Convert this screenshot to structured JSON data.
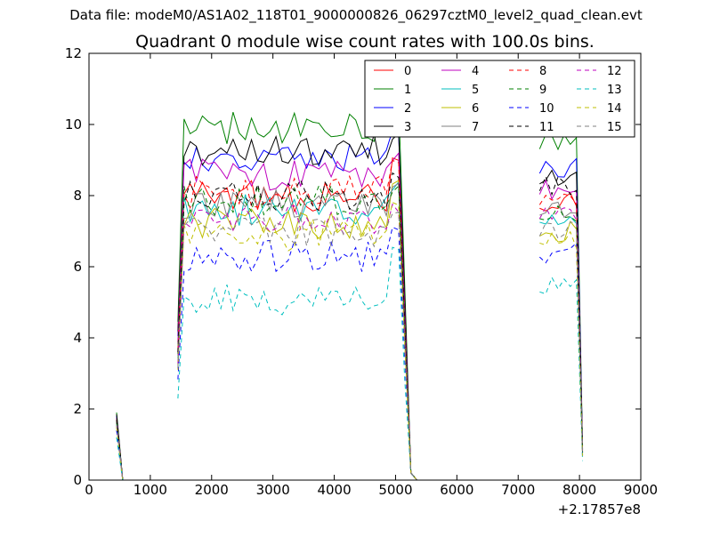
{
  "figure": {
    "suptitle": "Data file: modeM0/AS1A02_118T01_9000000826_06297cztM0_level2_quad_clean.evt"
  },
  "chart_data": {
    "type": "line",
    "title": "Quadrant 0 module wise count rates with 100.0s bins.",
    "xlabel": "",
    "ylabel": "",
    "x_offset_label": "+2.17857e8",
    "xlim": [
      0,
      9000
    ],
    "ylim": [
      0,
      12
    ],
    "xticks": [
      0,
      1000,
      2000,
      3000,
      4000,
      5000,
      6000,
      7000,
      8000,
      9000
    ],
    "yticks": [
      0,
      2,
      4,
      6,
      8,
      10,
      12
    ],
    "grid": false,
    "legend": {
      "placement": "top-right",
      "ncol": 4
    },
    "segments": [
      {
        "x": [
          450,
          550,
          650,
          750,
          850,
          950,
          1050,
          1150,
          1250,
          1350
        ]
      },
      {
        "x": [
          1450,
          1550,
          1650,
          1750,
          1850,
          1950,
          2050,
          2150,
          2250,
          2350,
          2450,
          2550,
          2650,
          2750,
          2850,
          2950,
          3050,
          3150,
          3250,
          3350,
          3450,
          3550,
          3650,
          3750,
          3850,
          3950,
          4050,
          4150,
          4250,
          4350,
          4450,
          4550,
          4650,
          4750,
          4850,
          4950,
          5050,
          5150,
          5250,
          5350,
          5450,
          5550,
          5650,
          5750,
          5850,
          5950,
          6050,
          6150,
          6250,
          6350,
          6450,
          6550,
          6650,
          6750,
          6850,
          6950,
          7050,
          7150,
          7250
        ]
      },
      {
        "x": [
          7350,
          7450,
          7550,
          7650,
          7750,
          7850,
          7950,
          8050
        ]
      }
    ],
    "series": [
      {
        "name": "0",
        "color": "#ff0000",
        "dash": "solid",
        "level": 8.0,
        "peak": 8.9,
        "late": 7.8,
        "start": 1.75
      },
      {
        "name": "1",
        "color": "#008000",
        "dash": "solid",
        "level": 9.9,
        "peak": 10.7,
        "late": 9.5,
        "start": 1.9
      },
      {
        "name": "2",
        "color": "#0000ff",
        "dash": "solid",
        "level": 9.0,
        "peak": 9.8,
        "late": 8.8,
        "start": 1.8
      },
      {
        "name": "3",
        "color": "#000000",
        "dash": "solid",
        "level": 9.3,
        "peak": 9.6,
        "late": 8.5,
        "start": 1.85
      },
      {
        "name": "4",
        "color": "#bf00bf",
        "dash": "solid",
        "level": 8.6,
        "peak": 9.0,
        "late": 8.2,
        "start": 1.7
      },
      {
        "name": "5",
        "color": "#00bfbf",
        "dash": "solid",
        "level": 7.6,
        "peak": 8.2,
        "late": 7.4,
        "start": 1.6
      },
      {
        "name": "6",
        "color": "#bfbf00",
        "dash": "solid",
        "level": 7.2,
        "peak": 8.4,
        "late": 7.0,
        "start": 1.5
      },
      {
        "name": "7",
        "color": "#808080",
        "dash": "solid",
        "level": 7.8,
        "peak": 8.3,
        "late": 7.6,
        "start": 1.6
      },
      {
        "name": "8",
        "color": "#ff0000",
        "dash": "dashed",
        "level": 8.1,
        "peak": 9.1,
        "late": 7.9,
        "start": 1.7
      },
      {
        "name": "9",
        "color": "#008000",
        "dash": "dashed",
        "level": 7.9,
        "peak": 8.2,
        "late": 7.5,
        "start": 1.65
      },
      {
        "name": "10",
        "color": "#0000ff",
        "dash": "dashed",
        "level": 6.3,
        "peak": 7.2,
        "late": 6.4,
        "start": 1.4
      },
      {
        "name": "11",
        "color": "#000000",
        "dash": "dashed",
        "level": 8.0,
        "peak": 8.6,
        "late": 8.3,
        "start": 1.7
      },
      {
        "name": "12",
        "color": "#bf00bf",
        "dash": "dashed",
        "level": 7.3,
        "peak": 7.6,
        "late": 7.5,
        "start": 1.55
      },
      {
        "name": "13",
        "color": "#00bfbf",
        "dash": "dashed",
        "level": 5.1,
        "peak": 6.5,
        "late": 5.4,
        "start": 1.2
      },
      {
        "name": "14",
        "color": "#bfbf00",
        "dash": "dashed",
        "level": 6.9,
        "peak": 7.9,
        "late": 6.8,
        "start": 1.5
      },
      {
        "name": "15",
        "color": "#808080",
        "dash": "dashed",
        "level": 7.0,
        "peak": 7.4,
        "late": 7.0,
        "start": 1.55
      }
    ]
  }
}
